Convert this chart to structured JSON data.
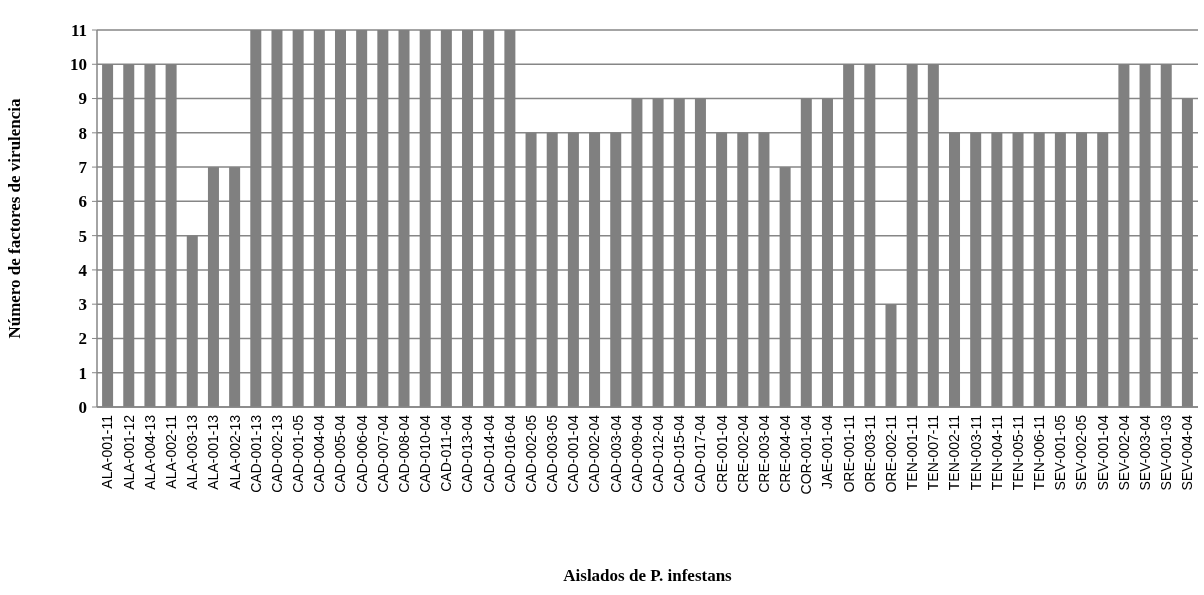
{
  "chart_data": {
    "type": "bar",
    "xlabel": "Aislados de P. infestans",
    "ylabel": "Número de factores de virulencia",
    "categories": [
      "ALA-001-11",
      "ALA-001-12",
      "ALA-004-13",
      "ALA-002-11",
      "ALA-003-13",
      "ALA-001-13",
      "ALA-002-13",
      "CAD-001-13",
      "CAD-002-13",
      "CAD-001-05",
      "CAD-004-04",
      "CAD-005-04",
      "CAD-006-04",
      "CAD-007-04",
      "CAD-008-04",
      "CAD-010-04",
      "CAD-011-04",
      "CAD-013-04",
      "CAD-014-04",
      "CAD-016-04",
      "CAD-002-05",
      "CAD-003-05",
      "CAD-001-04",
      "CAD-002-04",
      "CAD-003-04",
      "CAD-009-04",
      "CAD-012-04",
      "CAD-015-04",
      "CAD-017-04",
      "CRE-001-04",
      "CRE-002-04",
      "CRE-003-04",
      "CRE-004-04",
      "COR-001-04",
      "JAE-001-04",
      "ORE-001-11",
      "ORE-003-11",
      "ORE-002-11",
      "TEN-001-11",
      "TEN-007-11",
      "TEN-002-11",
      "TEN-003-11",
      "TEN-004-11",
      "TEN-005-11",
      "TEN-006-11",
      "SEV-001-05",
      "SEV-002-05",
      "SEV-001-04",
      "SEV-002-04",
      "SEV-003-04",
      "SEV-001-03",
      "SEV-004-04"
    ],
    "values": [
      10,
      10,
      10,
      10,
      5,
      7,
      7,
      11,
      11,
      11,
      11,
      11,
      11,
      11,
      11,
      11,
      11,
      11,
      11,
      11,
      8,
      8,
      8,
      8,
      8,
      9,
      9,
      9,
      9,
      8,
      8,
      8,
      7,
      9,
      9,
      10,
      10,
      3,
      10,
      10,
      8,
      8,
      8,
      8,
      8,
      8,
      8,
      8,
      10,
      10,
      10,
      9
    ],
    "color": "#808080",
    "ylim": [
      0,
      11
    ],
    "yticks": [
      0,
      1,
      2,
      3,
      4,
      5,
      6,
      7,
      8,
      9,
      10,
      11
    ],
    "grid": "y"
  }
}
